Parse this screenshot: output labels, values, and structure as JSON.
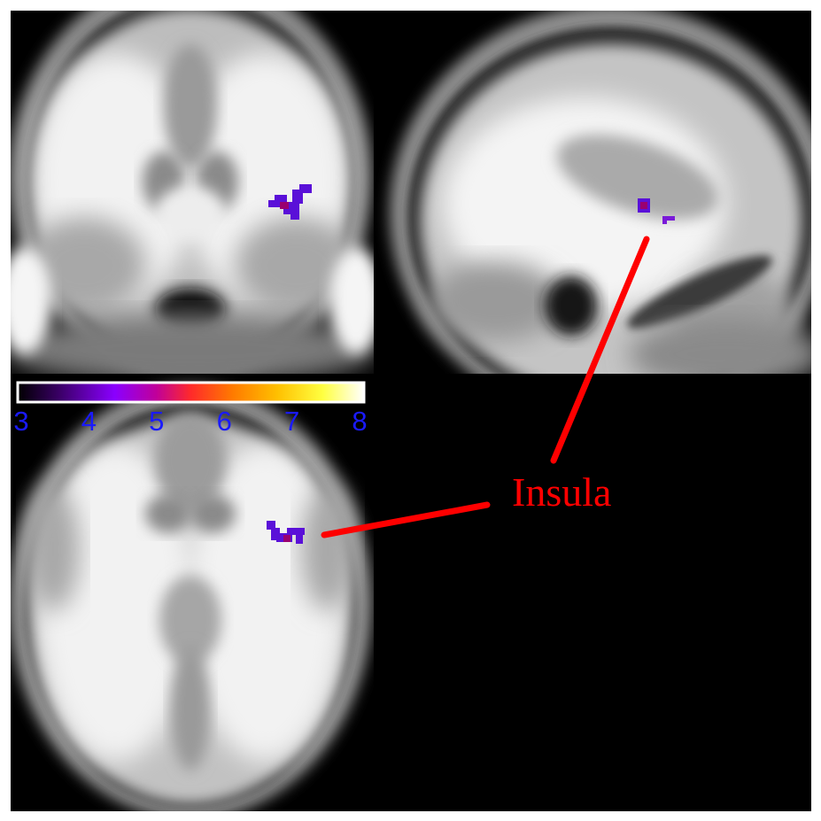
{
  "colors": {
    "frame_bg": "#000000",
    "page_bg": "#ffffff",
    "tick_text": "#1a1aff",
    "annotation": "#ff0000",
    "colorbar_border": "#ffffff",
    "colorbar_stops": [
      "#000000",
      "#3a0066",
      "#8a00ff",
      "#c0009a",
      "#ff2a2a",
      "#ff7a00",
      "#ffc000",
      "#ffff40",
      "#ffffff"
    ],
    "blob_colors": [
      "#5a10d8",
      "#9a0070",
      "#7a1ad8"
    ]
  },
  "colorbar": {
    "min": 3,
    "max": 8,
    "ticks": [
      "3",
      "4",
      "5",
      "6",
      "7",
      "8"
    ]
  },
  "views": [
    {
      "key": "coronal",
      "icon": "coronal-brain-slice"
    },
    {
      "key": "sagittal",
      "icon": "sagittal-brain-slice"
    },
    {
      "key": "axial",
      "icon": "axial-brain-slice"
    }
  ],
  "annotation": {
    "label": "Insula"
  }
}
